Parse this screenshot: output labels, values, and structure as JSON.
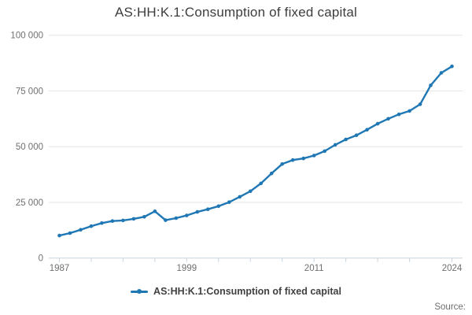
{
  "header": {
    "title": "AS:HH:K.1:Consumption of fixed capital"
  },
  "legend": {
    "label": "AS:HH:K.1:Consumption of fixed capital",
    "marker_icon": "line-dot-icon"
  },
  "footer": {
    "source_label": "Source:"
  },
  "colors": {
    "line": "#1f77b4",
    "title_text": "#3d3d3d",
    "axis_text": "#6f7071",
    "gridline": "#e6e6e6",
    "axis_line": "#c9d4dd",
    "legend_text": "#414042",
    "source_text": "#6e6e6e",
    "background": "#ffffff"
  },
  "chart_data": {
    "type": "line",
    "title": "AS:HH:K.1:Consumption of fixed capital",
    "series_name": "AS:HH:K.1:Consumption of fixed capital",
    "x": [
      1987,
      1988,
      1989,
      1990,
      1991,
      1992,
      1993,
      1994,
      1995,
      1996,
      1997,
      1998,
      1999,
      2000,
      2001,
      2002,
      2003,
      2004,
      2005,
      2006,
      2007,
      2008,
      2009,
      2010,
      2011,
      2012,
      2013,
      2014,
      2015,
      2016,
      2017,
      2018,
      2019,
      2020,
      2021,
      2022,
      2023,
      2024
    ],
    "values": [
      10100,
      11200,
      12700,
      14300,
      15700,
      16600,
      16900,
      17600,
      18500,
      21000,
      17000,
      17900,
      19100,
      20700,
      21900,
      23300,
      25100,
      27500,
      30000,
      33500,
      38000,
      42200,
      44000,
      44700,
      46000,
      48000,
      50800,
      53200,
      55100,
      57600,
      60300,
      62500,
      64500,
      66000,
      69000,
      77500,
      83100,
      86000
    ],
    "xlabel": "",
    "ylabel": "",
    "xlim": [
      1986,
      2025
    ],
    "ylim": [
      0,
      100000
    ],
    "grid": true,
    "legend_position": "bottom",
    "marker": "circle",
    "y_ticks": [
      {
        "value": 0,
        "label": "0"
      },
      {
        "value": 25000,
        "label": "25 000"
      },
      {
        "value": 50000,
        "label": "50 000"
      },
      {
        "value": 75000,
        "label": "75 000"
      },
      {
        "value": 100000,
        "label": "100 000"
      }
    ],
    "x_ticks_labeled": [
      {
        "value": 1987,
        "label": "1987"
      },
      {
        "value": 1999,
        "label": "1999"
      },
      {
        "value": 2011,
        "label": "2011"
      },
      {
        "value": 2024,
        "label": "2024"
      }
    ],
    "x_ticks_minor": [
      1987,
      1990,
      1993,
      1996,
      1999,
      2002,
      2005,
      2008,
      2011,
      2014,
      2017,
      2020,
      2024
    ]
  }
}
